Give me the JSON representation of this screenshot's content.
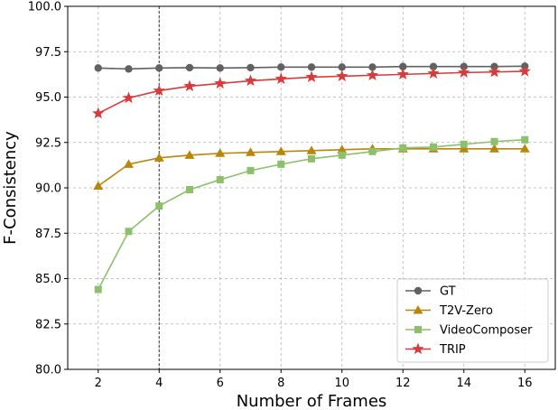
{
  "chart_data": {
    "type": "line",
    "title": "",
    "xlabel": "Number of Frames",
    "ylabel": "F-Consistency",
    "xlim": [
      1,
      17
    ],
    "ylim": [
      80.0,
      100.0
    ],
    "xticks": [
      2,
      4,
      6,
      8,
      10,
      12,
      14,
      16
    ],
    "yticks": [
      80.0,
      82.5,
      85.0,
      87.5,
      90.0,
      92.5,
      95.0,
      97.5,
      100.0
    ],
    "x_tick_labels": [
      "2",
      "4",
      "6",
      "8",
      "10",
      "12",
      "14",
      "16"
    ],
    "y_tick_labels": [
      "80.0",
      "82.5",
      "85.0",
      "87.5",
      "90.0",
      "92.5",
      "95.0",
      "97.5",
      "100.0"
    ],
    "grid": true,
    "reference_line_x": 4,
    "legend_position": "lower-right",
    "x": [
      2,
      3,
      4,
      5,
      6,
      7,
      8,
      9,
      10,
      11,
      12,
      13,
      14,
      15,
      16
    ],
    "series": [
      {
        "name": "GT",
        "color": "#616161",
        "marker": "circle",
        "values": [
          96.6,
          96.55,
          96.6,
          96.62,
          96.6,
          96.62,
          96.65,
          96.65,
          96.65,
          96.65,
          96.68,
          96.68,
          96.68,
          96.68,
          96.7
        ]
      },
      {
        "name": "T2V-Zero",
        "color": "#b8860b",
        "marker": "triangle",
        "values": [
          90.1,
          91.3,
          91.65,
          91.8,
          91.9,
          91.95,
          92.0,
          92.05,
          92.1,
          92.15,
          92.15,
          92.15,
          92.15,
          92.15,
          92.15
        ]
      },
      {
        "name": "VideoComposer",
        "color": "#8cc06b",
        "marker": "square",
        "values": [
          84.4,
          87.6,
          89.0,
          89.9,
          90.45,
          90.95,
          91.3,
          91.6,
          91.8,
          92.0,
          92.2,
          92.25,
          92.4,
          92.55,
          92.65
        ]
      },
      {
        "name": "TRIP",
        "color": "#d93a3a",
        "marker": "star",
        "values": [
          94.1,
          94.95,
          95.35,
          95.6,
          95.75,
          95.9,
          96.0,
          96.1,
          96.15,
          96.2,
          96.25,
          96.3,
          96.35,
          96.38,
          96.42
        ]
      }
    ]
  }
}
